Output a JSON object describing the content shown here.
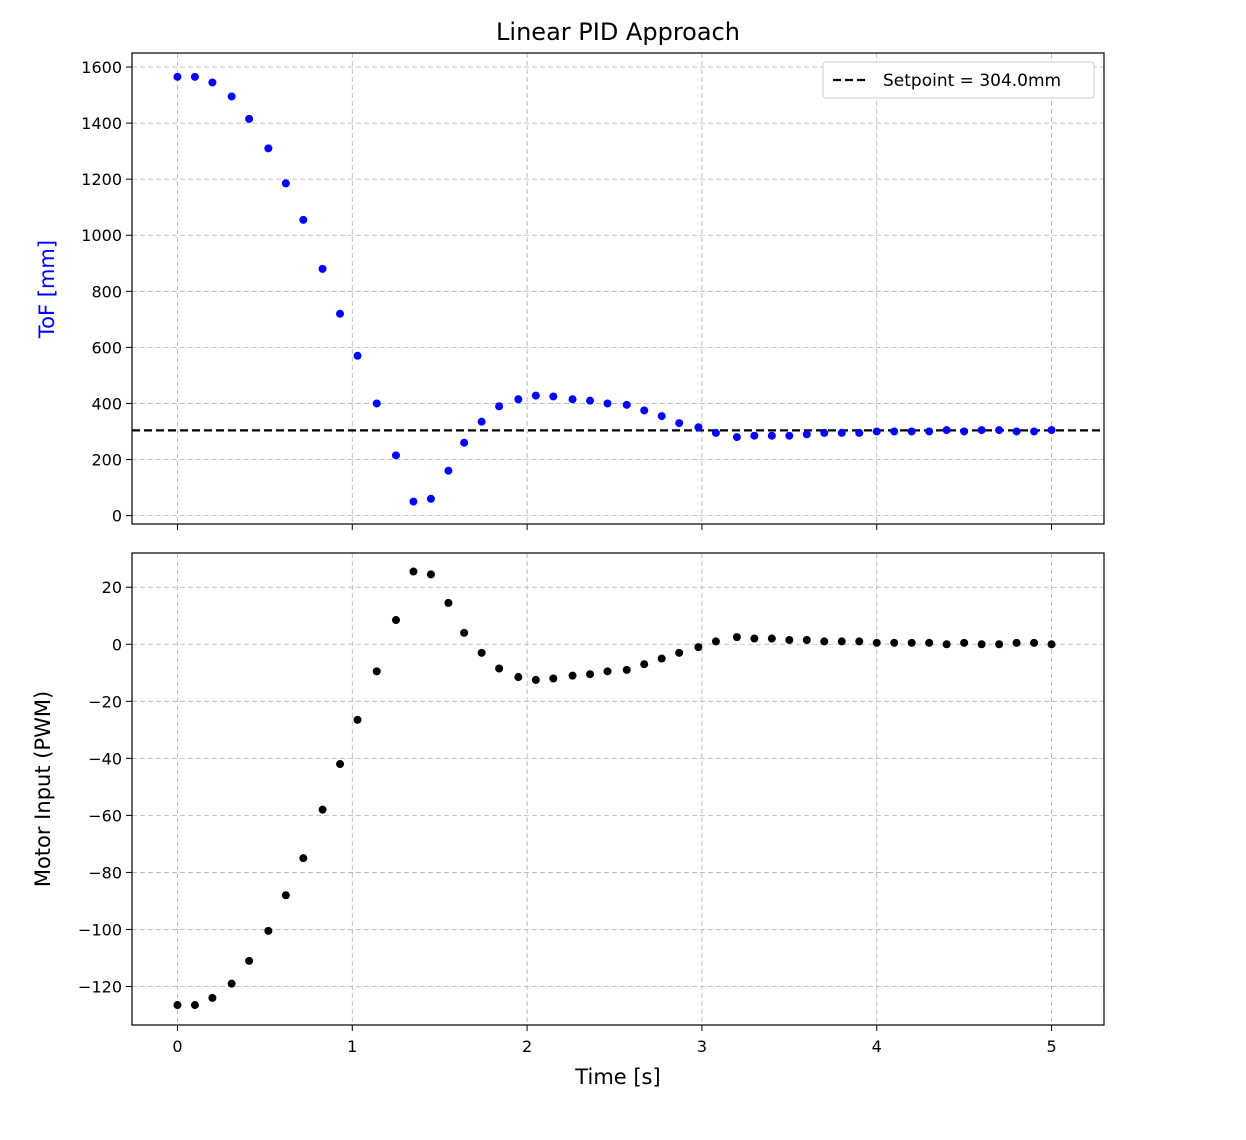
{
  "chart_data": {
    "type": "scatter",
    "title": "Linear PID Approach",
    "xlabel": "Time [s]",
    "xlim": [
      -0.26,
      5.3
    ],
    "xticks": [
      0,
      1,
      2,
      3,
      4,
      5
    ],
    "grid": true,
    "grid_style": "dashed",
    "panels": [
      {
        "name": "tof",
        "ylabel": "ToF [mm]",
        "ylabel_color": "#0000ff",
        "marker_color": "#0000ff",
        "ylim": [
          -30,
          1650
        ],
        "yticks": [
          0,
          200,
          400,
          600,
          800,
          1000,
          1200,
          1400,
          1600
        ],
        "legend": {
          "label": "Setpoint = 304.0mm",
          "position": "top-right"
        },
        "setpoint": 304.0,
        "x": [
          0.0,
          0.1,
          0.2,
          0.31,
          0.41,
          0.52,
          0.62,
          0.72,
          0.83,
          0.93,
          1.03,
          1.14,
          1.25,
          1.35,
          1.45,
          1.55,
          1.64,
          1.74,
          1.84,
          1.95,
          2.05,
          2.15,
          2.26,
          2.36,
          2.46,
          2.57,
          2.67,
          2.77,
          2.87,
          2.98,
          3.08,
          3.2,
          3.3,
          3.4,
          3.5,
          3.6,
          3.7,
          3.8,
          3.9,
          4.0,
          4.1,
          4.2,
          4.3,
          4.4,
          4.5,
          4.6,
          4.7,
          4.8,
          4.9,
          5.0
        ],
        "y": [
          1565,
          1565,
          1545,
          1495,
          1415,
          1310,
          1185,
          1055,
          880,
          720,
          570,
          400,
          215,
          50,
          60,
          160,
          260,
          335,
          390,
          415,
          428,
          425,
          415,
          410,
          400,
          395,
          375,
          355,
          330,
          315,
          295,
          280,
          285,
          285,
          285,
          290,
          295,
          295,
          295,
          300,
          300,
          300,
          300,
          305,
          300,
          305,
          305,
          300,
          300,
          305
        ]
      },
      {
        "name": "motor",
        "ylabel": "Motor Input (PWM)",
        "ylabel_color": "#000000",
        "marker_color": "#000000",
        "ylim": [
          -133.5,
          32
        ],
        "yticks": [
          20,
          0,
          -20,
          -40,
          -60,
          -80,
          -100,
          -120
        ],
        "ytick_labels": [
          "20",
          "0",
          "−20",
          "−40",
          "−60",
          "−80",
          "−100",
          "−120"
        ],
        "x": [
          0.0,
          0.1,
          0.2,
          0.31,
          0.41,
          0.52,
          0.62,
          0.72,
          0.83,
          0.93,
          1.03,
          1.14,
          1.25,
          1.35,
          1.45,
          1.55,
          1.64,
          1.74,
          1.84,
          1.95,
          2.05,
          2.15,
          2.26,
          2.36,
          2.46,
          2.57,
          2.67,
          2.77,
          2.87,
          2.98,
          3.08,
          3.2,
          3.3,
          3.4,
          3.5,
          3.6,
          3.7,
          3.8,
          3.9,
          4.0,
          4.1,
          4.2,
          4.3,
          4.4,
          4.5,
          4.6,
          4.7,
          4.8,
          4.9,
          5.0
        ],
        "y": [
          -126.5,
          -126.5,
          -124,
          -119,
          -111,
          -100.5,
          -88,
          -75,
          -58,
          -42,
          -26.5,
          -9.5,
          8.5,
          25.5,
          24.5,
          14.5,
          4,
          -3,
          -8.5,
          -11.5,
          -12.5,
          -12,
          -11,
          -10.5,
          -9.5,
          -9,
          -7,
          -5,
          -3,
          -1,
          1,
          2.5,
          2,
          2,
          1.5,
          1.5,
          1,
          1,
          1,
          0.5,
          0.5,
          0.5,
          0.5,
          0,
          0.5,
          0,
          0,
          0.5,
          0.5,
          0
        ]
      }
    ]
  }
}
